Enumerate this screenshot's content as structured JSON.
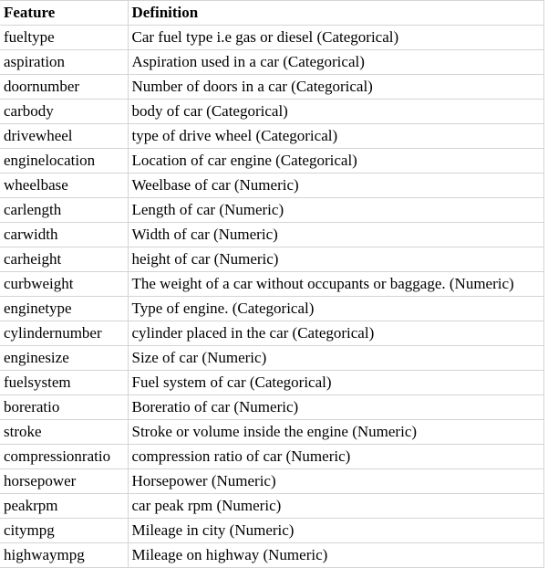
{
  "headers": {
    "feature": "Feature",
    "definition": "Definition"
  },
  "rows": [
    {
      "feature": "fueltype",
      "definition": "Car fuel type i.e gas or diesel (Categorical)"
    },
    {
      "feature": "aspiration",
      "definition": "Aspiration used in a car (Categorical)"
    },
    {
      "feature": "doornumber",
      "definition": "Number of doors in a car (Categorical)"
    },
    {
      "feature": "carbody",
      "definition": "body of car (Categorical)"
    },
    {
      "feature": "drivewheel",
      "definition": "type of drive wheel (Categorical)"
    },
    {
      "feature": "enginelocation",
      "definition": "Location of car engine (Categorical)"
    },
    {
      "feature": "wheelbase",
      "definition": "Weelbase of car (Numeric)"
    },
    {
      "feature": "carlength",
      "definition": "Length of car (Numeric)"
    },
    {
      "feature": "carwidth",
      "definition": "Width of car (Numeric)"
    },
    {
      "feature": "carheight",
      "definition": "height of car (Numeric)"
    },
    {
      "feature": "curbweight",
      "definition": "The weight of a car without occupants or baggage. (Numeric)"
    },
    {
      "feature": "enginetype",
      "definition": "Type of engine. (Categorical)"
    },
    {
      "feature": "cylindernumber",
      "definition": "cylinder placed in the car (Categorical)"
    },
    {
      "feature": "enginesize",
      "definition": "Size of car (Numeric)"
    },
    {
      "feature": "fuelsystem",
      "definition": "Fuel system of car (Categorical)"
    },
    {
      "feature": "boreratio",
      "definition": "Boreratio of car (Numeric)"
    },
    {
      "feature": "stroke",
      "definition": "Stroke or volume inside the engine (Numeric)"
    },
    {
      "feature": "compressionratio",
      "definition": "compression ratio of car (Numeric)"
    },
    {
      "feature": "horsepower",
      "definition": "Horsepower (Numeric)"
    },
    {
      "feature": "peakrpm",
      "definition": "car peak rpm (Numeric)"
    },
    {
      "feature": "citympg",
      "definition": "Mileage in city (Numeric)"
    },
    {
      "feature": "highwaympg",
      "definition": "Mileage on highway (Numeric)"
    }
  ]
}
